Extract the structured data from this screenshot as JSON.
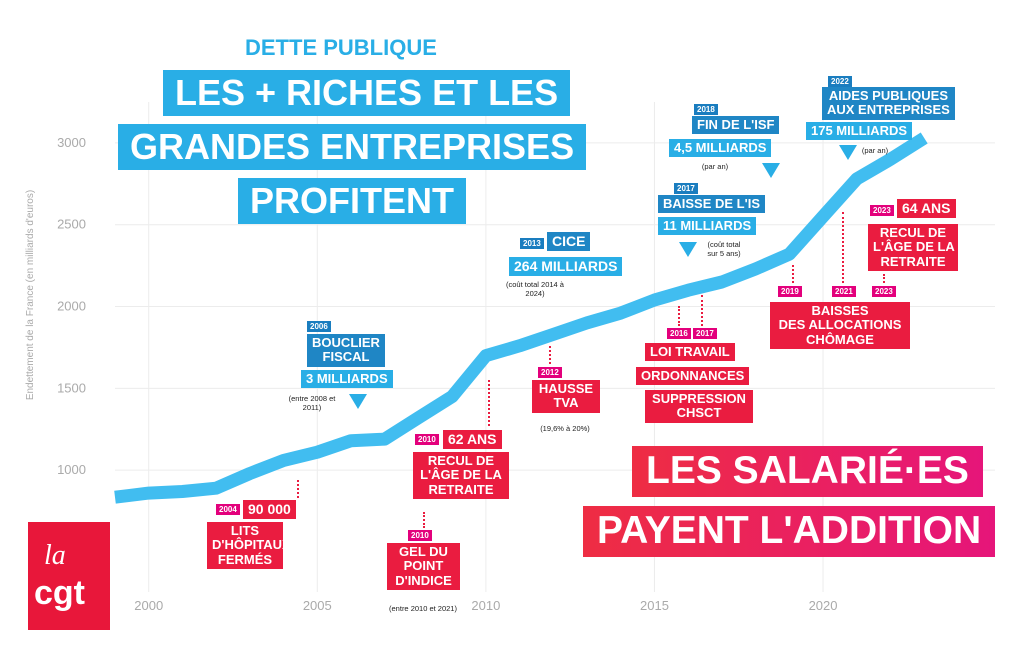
{
  "header": {
    "kicker": "DETTE PUBLIQUE",
    "title": [
      "LES + RICHES ET LES",
      "GRANDES ENTREPRISES",
      "PROFITENT"
    ]
  },
  "chart_data": {
    "type": "line",
    "y_label": "Endettement de la France (en milliards d'euros)",
    "x": [
      1999,
      2000,
      2001,
      2002,
      2003,
      2004,
      2005,
      2006,
      2007,
      2008,
      2009,
      2010,
      2011,
      2012,
      2013,
      2014,
      2015,
      2016,
      2017,
      2018,
      2019,
      2020,
      2021,
      2022,
      2023
    ],
    "values": [
      835,
      860,
      870,
      890,
      980,
      1060,
      1110,
      1180,
      1190,
      1320,
      1450,
      1700,
      1760,
      1830,
      1900,
      1960,
      2040,
      2100,
      2150,
      2230,
      2320,
      2550,
      2780,
      2900,
      3030
    ],
    "color": "#41bdf0",
    "xlim": [
      1999,
      2025.1
    ],
    "ylim": [
      500,
      3250
    ],
    "xticks": [
      2000,
      2005,
      2010,
      2015,
      2020
    ],
    "yticks": [
      1000,
      1500,
      2000,
      2500,
      3000
    ],
    "grid": true
  },
  "callouts": {
    "bouclier": {
      "year": "2006",
      "title": [
        "BOUCLIER",
        "FISCAL"
      ],
      "amount": "3 MILLIARDS",
      "note": "(entre 2008 et 2011)"
    },
    "cice": {
      "year": "2013",
      "title": [
        "CICE"
      ],
      "amount": "264 MILLIARDS",
      "note": "(coût total 2014 à 2024)"
    },
    "isf": {
      "year": "2018",
      "title": [
        "FIN DE L'ISF"
      ],
      "amount": "4,5 MILLIARDS",
      "note": "(par an)"
    },
    "is": {
      "year": "2017",
      "title": [
        "BAISSE DE L'IS"
      ],
      "amount": "11 MILLIARDS",
      "note": "(coût total sur 5 ans)"
    },
    "aides": {
      "year": "2022",
      "title": [
        "AIDES PUBLIQUES",
        "AUX ENTREPRISES"
      ],
      "amount": "175 MILLIARDS",
      "note": "(par an)"
    },
    "lits": {
      "year": "2004",
      "headline": "90 000",
      "lines": [
        "LITS",
        "D'HÔPITAUX",
        "FERMÉS"
      ]
    },
    "retraite2010": {
      "year": "2010",
      "headline": "62 ANS",
      "lines": [
        "RECUL DE",
        "L'ÂGE DE LA",
        "RETRAITE"
      ]
    },
    "gel": {
      "year": "2010",
      "lines": [
        "GEL DU",
        "POINT",
        "D'INDICE"
      ],
      "note": "(entre 2010 et 2021)"
    },
    "tva": {
      "year": "2012",
      "lines": [
        "HAUSSE",
        "TVA"
      ],
      "note": "(19,6% à 20%)"
    },
    "travail": {
      "years": [
        "2016",
        "2017"
      ],
      "lines": [
        "LOI TRAVAIL",
        "ORDONNANCES",
        "SUPPRESSION",
        "CHSCT"
      ]
    },
    "chomage": {
      "years": [
        "2019",
        "2021",
        "2023"
      ],
      "lines": [
        "BAISSES",
        "DES ALLOCATIONS",
        "CHÔMAGE"
      ]
    },
    "retraite2023": {
      "year": "2023",
      "headline": "64 ANS",
      "lines": [
        "RECUL DE",
        "L'ÂGE DE LA",
        "RETRAITE"
      ]
    }
  },
  "slogan": [
    "LES SALARIÉ·ES",
    "PAYENT L'ADDITION"
  ],
  "logo": [
    "la",
    "cgt"
  ]
}
